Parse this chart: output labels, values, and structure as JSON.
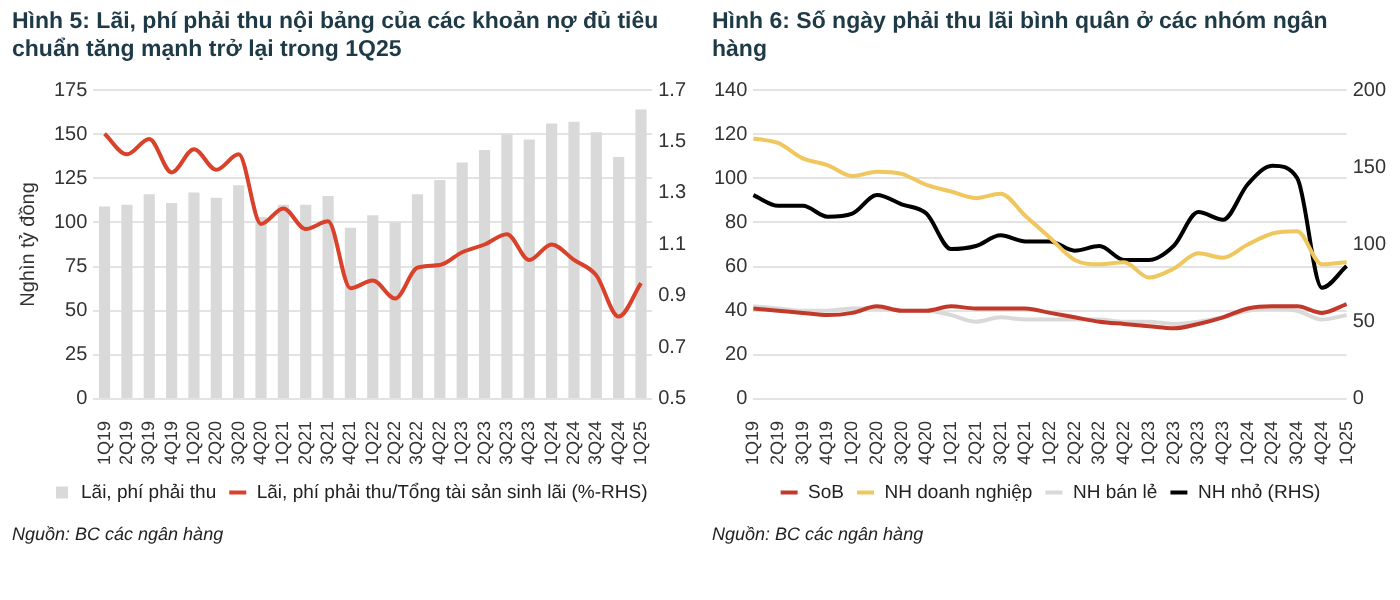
{
  "chart_data": [
    {
      "type": "bar",
      "title": "Hình 5: Lãi, phí phải thu nội bảng của các khoản nợ đủ tiêu chuẩn tăng mạnh trở lại trong 1Q25",
      "ylabel": "Nghìn tỷ đồng",
      "categories": [
        "1Q19",
        "2Q19",
        "3Q19",
        "4Q19",
        "1Q20",
        "2Q20",
        "3Q20",
        "4Q20",
        "1Q21",
        "2Q21",
        "3Q21",
        "4Q21",
        "1Q22",
        "2Q22",
        "3Q22",
        "4Q22",
        "1Q23",
        "2Q23",
        "3Q23",
        "4Q23",
        "1Q24",
        "2Q24",
        "3Q24",
        "4Q24",
        "1Q25"
      ],
      "series": [
        {
          "name": "Lãi, phí phải thu",
          "color": "#d9d9d9",
          "values": [
            109,
            110,
            116,
            111,
            117,
            114,
            121,
            103,
            110,
            110,
            115,
            97,
            104,
            100,
            116,
            124,
            134,
            141,
            150,
            147,
            156,
            157,
            151,
            137,
            164
          ]
        },
        {
          "name": "Lãi, phí phải thu/Tổng tài sản sinh lãi (%-RHS)",
          "type": "line",
          "axis": "y2",
          "color": "#d9412b",
          "values": [
            1.53,
            1.45,
            1.51,
            1.38,
            1.47,
            1.39,
            1.45,
            1.18,
            1.24,
            1.16,
            1.19,
            0.93,
            0.96,
            0.89,
            1.01,
            1.02,
            1.07,
            1.1,
            1.14,
            1.04,
            1.1,
            1.04,
            0.98,
            0.82,
            0.95
          ]
        }
      ],
      "ylim": [
        0,
        175
      ],
      "yticks": [
        0,
        25,
        50,
        75,
        100,
        125,
        150,
        175
      ],
      "y2lim": [
        0.5,
        1.7
      ],
      "y2ticks": [
        {
          "value": 0.5,
          "label": "0.5"
        },
        {
          "value": 0.7,
          "label": "0.7"
        },
        {
          "value": 0.9,
          "label": "0.9"
        },
        {
          "value": 1.1,
          "label": "1.1"
        },
        {
          "value": 1.3,
          "label": "1.3"
        },
        {
          "value": 1.5,
          "label": "1.5"
        },
        {
          "value": 1.7,
          "label": "1.7"
        }
      ],
      "grid": "y",
      "legend": "bottom",
      "marker": "none",
      "line_style": "solid",
      "annotations": [
        "Nguồn: BC các ngân hàng"
      ]
    },
    {
      "type": "line",
      "title": "Hình 6: Số ngày phải thu lãi bình quân ở các nhóm ngân hàng",
      "categories": [
        "1Q19",
        "2Q19",
        "3Q19",
        "4Q19",
        "1Q20",
        "2Q20",
        "3Q20",
        "4Q20",
        "1Q21",
        "2Q21",
        "3Q21",
        "4Q21",
        "1Q22",
        "2Q22",
        "3Q22",
        "4Q22",
        "1Q23",
        "2Q23",
        "3Q23",
        "4Q23",
        "1Q24",
        "2Q24",
        "3Q24",
        "4Q24",
        "1Q25"
      ],
      "series": [
        {
          "name": "SoB",
          "color": "#c0392b",
          "values": [
            41,
            40,
            39,
            38,
            39,
            42,
            40,
            40,
            42,
            41,
            41,
            41,
            39,
            37,
            35,
            34,
            33,
            32,
            34,
            37,
            41,
            42,
            42,
            39,
            43
          ]
        },
        {
          "name": "NH doanh nghiệp",
          "color": "#f0c75e",
          "values": [
            118,
            116,
            109,
            106,
            101,
            103,
            102,
            97,
            94,
            91,
            93,
            83,
            73,
            63,
            61,
            62,
            55,
            59,
            66,
            64,
            70,
            75,
            76,
            61,
            62
          ]
        },
        {
          "name": "NH bán lẻ",
          "color": "#d9d9d9",
          "values": [
            42,
            41,
            40,
            40,
            41,
            41,
            40,
            40,
            38,
            35,
            37,
            36,
            36,
            36,
            36,
            35,
            35,
            34,
            35,
            37,
            40,
            41,
            40,
            36,
            38
          ]
        },
        {
          "name": "NH nhỏ (RHS)",
          "color": "#000000",
          "axis": "y2",
          "values": [
            132,
            125,
            125,
            118,
            120,
            132,
            126,
            120,
            97,
            99,
            106,
            102,
            102,
            96,
            99,
            90,
            90,
            99,
            121,
            116,
            139,
            151,
            143,
            72,
            86
          ]
        }
      ],
      "ylim": [
        0,
        140
      ],
      "yticks": [
        0,
        20,
        40,
        60,
        80,
        100,
        120,
        140
      ],
      "y2lim": [
        0,
        200
      ],
      "y2ticks": [
        0,
        50,
        100,
        150,
        200
      ],
      "grid": "y",
      "legend": "bottom",
      "marker": "none",
      "line_style": "solid",
      "annotations": [
        "Nguồn: BC các ngân hàng"
      ]
    }
  ]
}
